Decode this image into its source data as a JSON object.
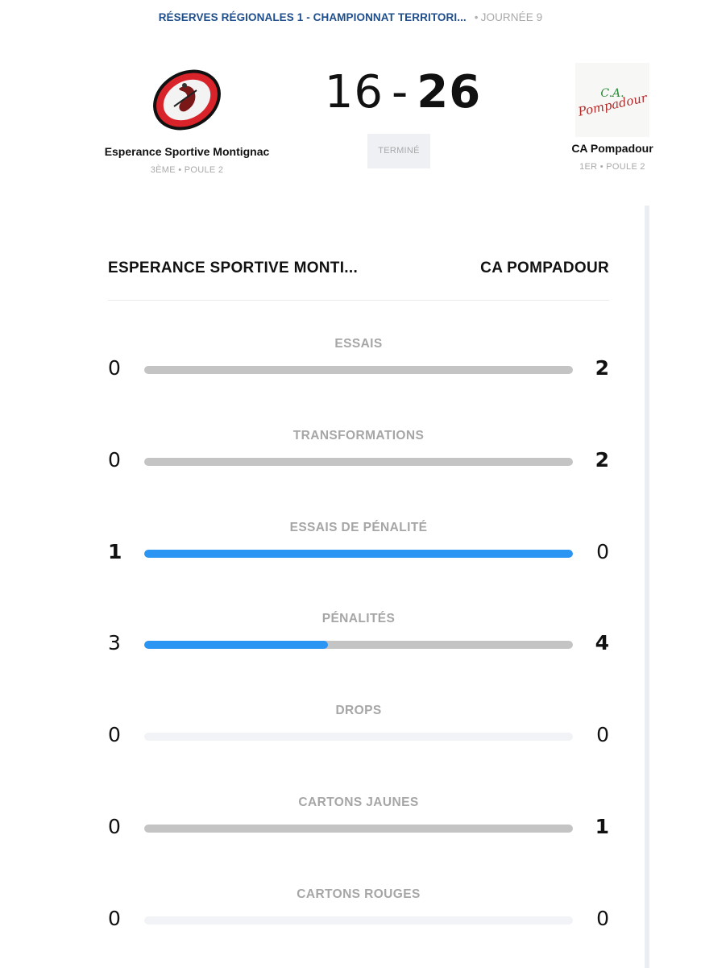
{
  "competition": {
    "name": "RÉSERVES RÉGIONALES 1 - CHAMPIONNAT TERRITORI...",
    "separator": "•",
    "round": "JOURNÉE 9"
  },
  "home_team": {
    "name": "Esperance Sportive Montignac",
    "meta": "3ÈME • POULE 2",
    "logo_icon": "club-crest-rugby-ball-red"
  },
  "away_team": {
    "name": "CA Pompadour",
    "meta": "1ER • POULE 2",
    "logo_icon": "club-logo-ca-pompadour",
    "logo_text_1": "C.A.",
    "logo_text_2": "Pompadour"
  },
  "score": {
    "home": "16",
    "separator": "-",
    "away": "26"
  },
  "status": "TERMINÉ",
  "stats_header": {
    "home": "ESPERANCE SPORTIVE MONTI...",
    "away": "CA POMPADOUR"
  },
  "colors": {
    "accent_blue": "#2b95f3",
    "bar_grey": "#c4c4c4",
    "bar_empty": "#f1f3f6",
    "competition_blue": "#1f4e8c"
  },
  "stats": [
    {
      "label": "ESSAIS",
      "home": "0",
      "away": "2",
      "home_share": 0
    },
    {
      "label": "TRANSFORMATIONS",
      "home": "0",
      "away": "2",
      "home_share": 0
    },
    {
      "label": "ESSAIS DE PÉNALITÉ",
      "home": "1",
      "away": "0",
      "home_share": 1
    },
    {
      "label": "PÉNALITÉS",
      "home": "3",
      "away": "4",
      "home_share": 0.4286
    },
    {
      "label": "DROPS",
      "home": "0",
      "away": "0",
      "home_share": null
    },
    {
      "label": "CARTONS JAUNES",
      "home": "0",
      "away": "1",
      "home_share": 0
    },
    {
      "label": "CARTONS ROUGES",
      "home": "0",
      "away": "0",
      "home_share": null
    }
  ]
}
